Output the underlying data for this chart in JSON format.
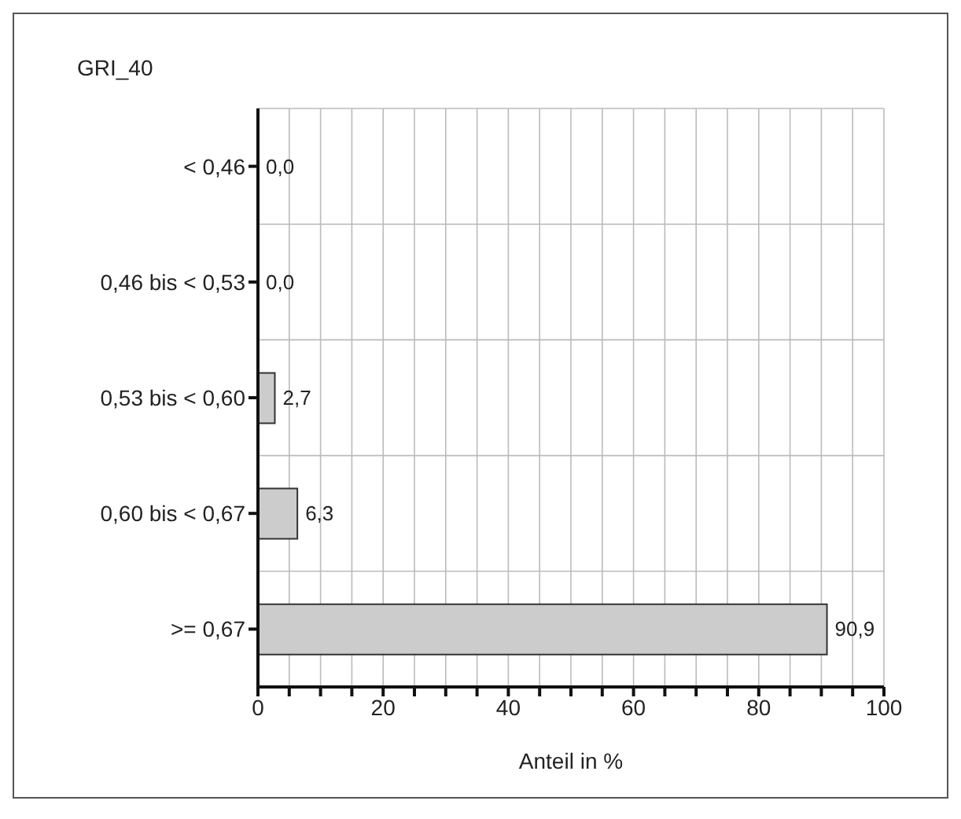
{
  "chart_data": {
    "type": "bar",
    "orientation": "horizontal",
    "title": "GRI_40",
    "xlabel": "Anteil in %",
    "categories": [
      "< 0,46",
      "0,46 bis < 0,53",
      "0,53 bis < 0,60",
      "0,60 bis < 0,67",
      ">= 0,67"
    ],
    "values": [
      0.0,
      0.0,
      2.7,
      6.3,
      90.9
    ],
    "value_labels": [
      "0,0",
      "0,0",
      "2,7",
      "6,3",
      "90,9"
    ],
    "color": "#cccccc",
    "xlim": [
      0,
      100
    ],
    "xticks": [
      0,
      {
        "value": 5,
        "label": null
      },
      {
        "value": 10,
        "label": null
      },
      {
        "value": 15,
        "label": null
      },
      20,
      {
        "value": 25,
        "label": null
      },
      {
        "value": 30,
        "label": null
      },
      {
        "value": 35,
        "label": null
      },
      40,
      {
        "value": 45,
        "label": null
      },
      {
        "value": 50,
        "label": null
      },
      {
        "value": 55,
        "label": null
      },
      60,
      {
        "value": 65,
        "label": null
      },
      {
        "value": 70,
        "label": null
      },
      {
        "value": 75,
        "label": null
      },
      80,
      {
        "value": 85,
        "label": null
      },
      {
        "value": 90,
        "label": null
      },
      {
        "value": 95,
        "label": null
      },
      100
    ],
    "grid": true
  }
}
